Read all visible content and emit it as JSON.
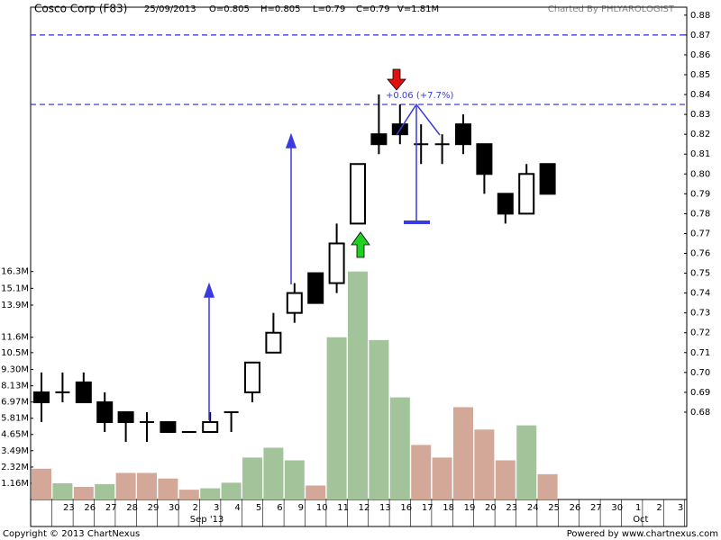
{
  "chart_data": {
    "type": "candlestick",
    "title": "Cosco Corp (F83)",
    "header": [
      "25/09/2013",
      "O=0.805",
      "H=0.805",
      "L=0.79",
      "C=0.79",
      "V=1.81M"
    ],
    "credit": "Charted By PHLYAROLOGIST",
    "footer_left": "Copyright © 2013 ChartNexus",
    "footer_right": "Powered by www.chartnexus.com",
    "annotation": "+0.06 (+7.7%)",
    "categories": [
      null,
      "23",
      "26",
      "27",
      "28",
      "29",
      "30",
      "2",
      "3",
      "4",
      "5",
      "6",
      "9",
      "10",
      "11",
      "12",
      "13",
      "16",
      "17",
      "18",
      "19",
      "20",
      "23",
      "24",
      "25",
      "26",
      "27",
      "30",
      "1",
      "2",
      "3"
    ],
    "month_labels": [
      null,
      null,
      null,
      null,
      null,
      null,
      null,
      "Sep '13",
      null,
      null,
      null,
      null,
      null,
      null,
      null,
      null,
      null,
      null,
      null,
      null,
      null,
      null,
      null,
      null,
      null,
      null,
      null,
      null,
      "Oct",
      null,
      null
    ],
    "open": [
      0.69,
      0.69,
      0.695,
      0.685,
      0.68,
      0.675,
      0.675,
      0.67,
      0.67,
      0.68,
      0.69,
      0.71,
      0.73,
      0.75,
      0.745,
      0.775,
      0.82,
      0.825,
      0.815,
      0.815,
      0.825,
      0.815,
      0.79,
      0.78,
      0.805,
      null,
      null,
      null,
      null,
      null,
      null
    ],
    "high": [
      0.7,
      0.7,
      0.7,
      0.69,
      0.68,
      0.68,
      0.675,
      0.67,
      0.68,
      0.68,
      0.705,
      0.73,
      0.745,
      0.75,
      0.775,
      0.805,
      0.84,
      0.835,
      0.825,
      0.82,
      0.83,
      0.815,
      0.79,
      0.805,
      0.805,
      null,
      null,
      null,
      null,
      null,
      null
    ],
    "low": [
      0.675,
      0.685,
      0.685,
      0.67,
      0.665,
      0.665,
      0.67,
      0.67,
      0.67,
      0.67,
      0.685,
      0.71,
      0.725,
      0.735,
      0.74,
      0.775,
      0.81,
      0.815,
      0.805,
      0.805,
      0.81,
      0.79,
      0.775,
      0.78,
      0.79,
      null,
      null,
      null,
      null,
      null,
      null
    ],
    "close": [
      0.685,
      0.69,
      0.685,
      0.675,
      0.675,
      0.675,
      0.67,
      0.67,
      0.675,
      0.68,
      0.705,
      0.72,
      0.74,
      0.735,
      0.765,
      0.805,
      0.815,
      0.82,
      0.815,
      0.815,
      0.815,
      0.8,
      0.78,
      0.8,
      0.79,
      null,
      null,
      null,
      null,
      null,
      null
    ],
    "volume": [
      2.2,
      1.16,
      0.9,
      1.1,
      1.9,
      1.9,
      1.5,
      0.7,
      0.8,
      1.2,
      3.0,
      3.7,
      2.8,
      1.0,
      11.6,
      16.3,
      11.4,
      7.3,
      3.9,
      3.0,
      6.6,
      5.0,
      2.8,
      5.3,
      1.81,
      null,
      null,
      null,
      null,
      null,
      null
    ],
    "volume_colors": [
      "#d4a898",
      "#a3c49b",
      "#d4a898",
      "#a3c49b",
      "#d4a898",
      "#d4a898",
      "#d4a898",
      "#d4a898",
      "#a3c49b",
      "#a3c49b",
      "#a3c49b",
      "#a3c49b",
      "#a3c49b",
      "#d4a898",
      "#a3c49b",
      "#a3c49b",
      "#a3c49b",
      "#a3c49b",
      "#d4a898",
      "#d4a898",
      "#d4a898",
      "#d4a898",
      "#d4a898",
      "#a3c49b",
      "#d4a898",
      null,
      null,
      null,
      null,
      null,
      null
    ],
    "up_color": "#ffffff",
    "down_color": "#000000",
    "ylim": [
      0.636,
      0.884
    ],
    "yticks": [
      0.68,
      0.69,
      {
        "value": 0.7,
        "label": "0.70"
      },
      0.71,
      0.72,
      0.73,
      0.74,
      0.75,
      0.76,
      0.77,
      0.78,
      0.79,
      {
        "value": 0.8,
        "label": "0.80"
      },
      0.81,
      0.82,
      0.83,
      0.84,
      0.85,
      0.86,
      0.87,
      0.88
    ],
    "y2lim": [
      0,
      35.2
    ],
    "y2ticks": [
      {
        "value": 1.16,
        "label": "1.16M"
      },
      {
        "value": 2.32,
        "label": "2.32M"
      },
      {
        "value": 3.49,
        "label": "3.49M"
      },
      {
        "value": 4.65,
        "label": "4.65M"
      },
      {
        "value": 5.81,
        "label": "5.81M"
      },
      {
        "value": 6.97,
        "label": "6.97M"
      },
      {
        "value": 8.13,
        "label": "8.13M"
      },
      {
        "value": 9.3,
        "label": "9.30M"
      },
      {
        "value": 10.5,
        "label": "10.5M"
      },
      {
        "value": 11.6,
        "label": "11.6M"
      },
      {
        "value": 13.9,
        "label": "13.9M"
      },
      {
        "value": 15.1,
        "label": "15.1M"
      },
      {
        "value": 16.3,
        "label": "16.3M"
      }
    ],
    "hlines": [
      0.87,
      0.835
    ],
    "hline_color": "#2a2ae0"
  }
}
